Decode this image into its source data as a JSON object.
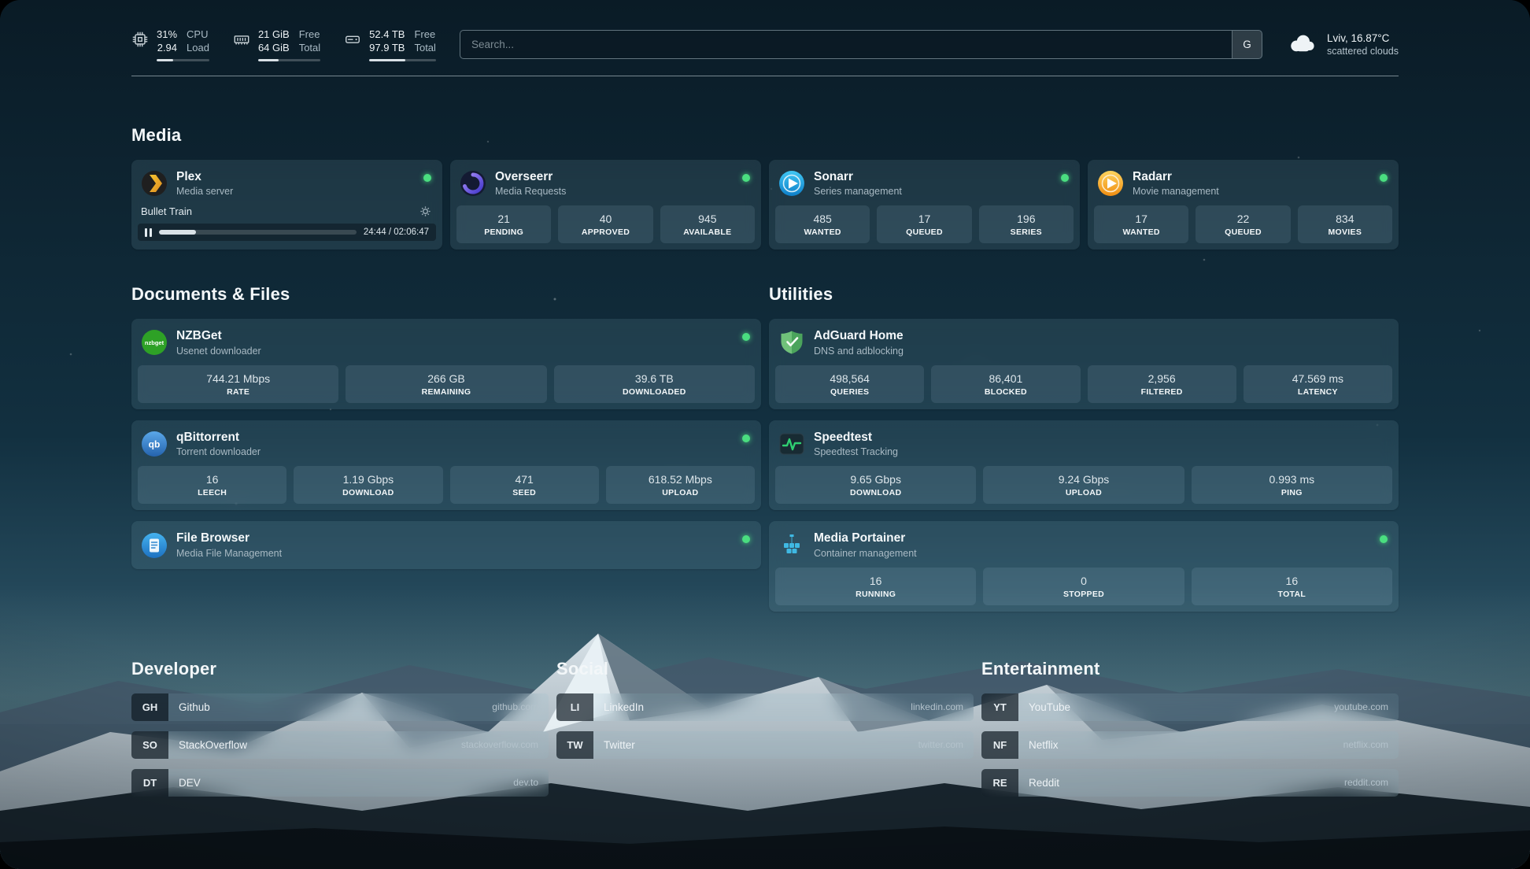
{
  "colors": {
    "status_online": "#4ade80",
    "speedtest_accent": "#2fd072"
  },
  "topbar": {
    "cpu": {
      "percent": "31%",
      "load": "2.94",
      "label_top": "CPU",
      "label_bottom": "Load",
      "bar_percent": 31
    },
    "memory": {
      "value_top": "21 GiB",
      "value_bottom": "64 GiB",
      "label_top": "Free",
      "label_bottom": "Total",
      "bar_percent": 33
    },
    "disk": {
      "value_top": "52.4 TB",
      "value_bottom": "97.9 TB",
      "label_top": "Free",
      "label_bottom": "Total",
      "bar_percent": 54
    },
    "search": {
      "placeholder": "Search...",
      "provider": "G"
    },
    "weather": {
      "location": "Lviv, 16.87°C",
      "condition": "scattered clouds"
    }
  },
  "media": {
    "title": "Media",
    "plex": {
      "name": "Plex",
      "desc": "Media server",
      "now_playing": {
        "title": "Bullet Train",
        "time": "24:44 / 02:06:47",
        "progress_percent": 19
      }
    },
    "overseerr": {
      "name": "Overseerr",
      "desc": "Media Requests",
      "stats": [
        {
          "value": "21",
          "label": "PENDING"
        },
        {
          "value": "40",
          "label": "APPROVED"
        },
        {
          "value": "945",
          "label": "AVAILABLE"
        }
      ]
    },
    "sonarr": {
      "name": "Sonarr",
      "desc": "Series management",
      "stats": [
        {
          "value": "485",
          "label": "WANTED"
        },
        {
          "value": "17",
          "label": "QUEUED"
        },
        {
          "value": "196",
          "label": "SERIES"
        }
      ]
    },
    "radarr": {
      "name": "Radarr",
      "desc": "Movie management",
      "stats": [
        {
          "value": "17",
          "label": "WANTED"
        },
        {
          "value": "22",
          "label": "QUEUED"
        },
        {
          "value": "834",
          "label": "MOVIES"
        }
      ]
    }
  },
  "documents": {
    "title": "Documents & Files",
    "nzbget": {
      "name": "NZBGet",
      "desc": "Usenet downloader",
      "stats": [
        {
          "value": "744.21 Mbps",
          "label": "RATE"
        },
        {
          "value": "266 GB",
          "label": "REMAINING"
        },
        {
          "value": "39.6 TB",
          "label": "DOWNLOADED"
        }
      ]
    },
    "qbittorrent": {
      "name": "qBittorrent",
      "desc": "Torrent downloader",
      "stats": [
        {
          "value": "16",
          "label": "LEECH"
        },
        {
          "value": "1.19 Gbps",
          "label": "DOWNLOAD"
        },
        {
          "value": "471",
          "label": "SEED"
        },
        {
          "value": "618.52 Mbps",
          "label": "UPLOAD"
        }
      ]
    },
    "filebrowser": {
      "name": "File Browser",
      "desc": "Media File Management"
    }
  },
  "utilities": {
    "title": "Utilities",
    "adguard": {
      "name": "AdGuard Home",
      "desc": "DNS and adblocking",
      "stats": [
        {
          "value": "498,564",
          "label": "QUERIES"
        },
        {
          "value": "86,401",
          "label": "BLOCKED"
        },
        {
          "value": "2,956",
          "label": "FILTERED"
        },
        {
          "value": "47.569 ms",
          "label": "LATENCY"
        }
      ]
    },
    "speedtest": {
      "name": "Speedtest",
      "desc": "Speedtest Tracking",
      "stats": [
        {
          "value": "9.65 Gbps",
          "label": "DOWNLOAD"
        },
        {
          "value": "9.24 Gbps",
          "label": "UPLOAD"
        },
        {
          "value": "0.993 ms",
          "label": "PING"
        }
      ]
    },
    "portainer": {
      "name": "Media Portainer",
      "desc": "Container management",
      "stats": [
        {
          "value": "16",
          "label": "RUNNING"
        },
        {
          "value": "0",
          "label": "STOPPED"
        },
        {
          "value": "16",
          "label": "TOTAL"
        }
      ]
    }
  },
  "bookmarks": {
    "developer": {
      "title": "Developer",
      "items": [
        {
          "abbr": "GH",
          "name": "Github",
          "url": "github.com"
        },
        {
          "abbr": "SO",
          "name": "StackOverflow",
          "url": "stackoverflow.com"
        },
        {
          "abbr": "DT",
          "name": "DEV",
          "url": "dev.to"
        }
      ]
    },
    "social": {
      "title": "Social",
      "items": [
        {
          "abbr": "LI",
          "name": "LinkedIn",
          "url": "linkedin.com"
        },
        {
          "abbr": "TW",
          "name": "Twitter",
          "url": "twitter.com"
        }
      ]
    },
    "entertainment": {
      "title": "Entertainment",
      "items": [
        {
          "abbr": "YT",
          "name": "YouTube",
          "url": "youtube.com"
        },
        {
          "abbr": "NF",
          "name": "Netflix",
          "url": "netflix.com"
        },
        {
          "abbr": "RE",
          "name": "Reddit",
          "url": "reddit.com"
        }
      ]
    }
  },
  "icons": {
    "nzbget_label": "nzbget",
    "qbittorrent_label": "qb"
  }
}
